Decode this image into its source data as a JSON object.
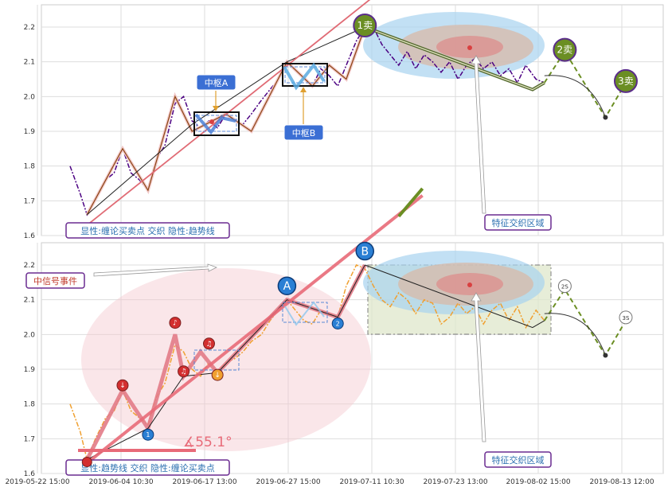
{
  "chart_data": [
    {
      "panel": "top",
      "type": "line",
      "x_ticks": [
        "2019-05-22 15:00",
        "2019-06-04 10:30",
        "2019-06-17 13:00",
        "2019-06-27 15:00",
        "2019-07-11 10:30",
        "2019-07-23 13:00",
        "2019-08-02 15:00",
        "2019-08-13 12:00"
      ],
      "ylim": [
        1.6,
        2.25
      ],
      "y_ticks": [
        "1.6",
        "1.7",
        "1.8",
        "1.9",
        "2.0",
        "2.1",
        "2.2"
      ],
      "grid": true,
      "series": [
        {
          "style": "price-dashdot",
          "color": "#4b0082",
          "points": [
            [
              0.0,
              1.8
            ],
            [
              0.6,
              1.72
            ],
            [
              1.0,
              1.66
            ],
            [
              1.5,
              1.7
            ],
            [
              2.1,
              1.76
            ],
            [
              2.6,
              1.78
            ],
            [
              3.1,
              1.85
            ],
            [
              3.6,
              1.78
            ],
            [
              4.1,
              1.76
            ],
            [
              4.6,
              1.73
            ],
            [
              5.1,
              1.82
            ],
            [
              5.6,
              1.86
            ],
            [
              6.2,
              1.98
            ],
            [
              6.7,
              2.0
            ],
            [
              7.2,
              1.93
            ],
            [
              7.7,
              1.91
            ],
            [
              8.2,
              1.93
            ],
            [
              8.7,
              1.91
            ],
            [
              9.2,
              1.95
            ],
            [
              9.7,
              1.93
            ],
            [
              10.2,
              1.92
            ],
            [
              10.7,
              1.95
            ],
            [
              11.3,
              1.99
            ],
            [
              11.8,
              2.02
            ],
            [
              12.3,
              2.05
            ],
            [
              12.8,
              2.1
            ],
            [
              13.3,
              2.08
            ],
            [
              13.8,
              2.05
            ],
            [
              14.3,
              2.03
            ],
            [
              14.8,
              2.08
            ],
            [
              15.3,
              2.06
            ],
            [
              15.8,
              2.03
            ],
            [
              16.3,
              2.09
            ],
            [
              16.9,
              2.16
            ],
            [
              17.4,
              2.2
            ],
            [
              17.9,
              2.2
            ],
            [
              18.4,
              2.15
            ],
            [
              18.9,
              2.12
            ],
            [
              19.4,
              2.09
            ],
            [
              19.9,
              2.13
            ],
            [
              20.4,
              2.08
            ],
            [
              20.9,
              2.12
            ],
            [
              21.4,
              2.1
            ],
            [
              21.9,
              2.07
            ],
            [
              22.4,
              2.1
            ],
            [
              22.9,
              2.05
            ],
            [
              23.4,
              2.09
            ],
            [
              23.9,
              2.11
            ],
            [
              24.4,
              2.08
            ],
            [
              24.9,
              2.1
            ],
            [
              25.4,
              2.06
            ],
            [
              25.9,
              2.08
            ],
            [
              26.4,
              2.04
            ],
            [
              26.9,
              2.09
            ],
            [
              27.5,
              2.05
            ],
            [
              28.0,
              2.04
            ]
          ]
        },
        {
          "style": "stroke-brown",
          "color": "#8b4513",
          "points": [
            [
              1.0,
              1.66
            ],
            [
              3.1,
              1.85
            ],
            [
              4.6,
              1.73
            ],
            [
              6.2,
              2.0
            ],
            [
              7.2,
              1.9
            ],
            [
              9.2,
              1.95
            ],
            [
              10.7,
              1.9
            ],
            [
              12.8,
              2.1
            ],
            [
              14.3,
              2.03
            ],
            [
              15.3,
              2.09
            ],
            [
              16.3,
              2.05
            ],
            [
              17.4,
              2.2
            ]
          ]
        },
        {
          "style": "segment-black",
          "color": "#222222",
          "points": [
            [
              1.0,
              1.66
            ],
            [
              7.2,
              1.92
            ],
            [
              12.8,
              2.1
            ],
            [
              17.4,
              2.2
            ]
          ]
        },
        {
          "style": "feature-green",
          "color": "#556b2f",
          "points": [
            [
              17.4,
              2.2
            ],
            [
              27.3,
              2.02
            ],
            [
              28.0,
              2.04
            ]
          ]
        },
        {
          "style": "forecast-dashed",
          "color": "#6b8e23",
          "points": [
            [
              28.0,
              2.04
            ],
            [
              29.2,
              2.13
            ],
            [
              31.6,
              1.94
            ],
            [
              32.8,
              2.04
            ]
          ]
        },
        {
          "style": "trend-red",
          "color": "#e06b75",
          "points": [
            [
              1.0,
              1.63
            ],
            [
              20.8,
              2.4
            ]
          ]
        }
      ],
      "pivots": [
        {
          "name": "中枢A",
          "x0": 7.7,
          "x1": 9.4,
          "y0": 1.88,
          "y1": 1.95
        },
        {
          "name": "中枢B",
          "x0": 13.5,
          "x1": 15.6,
          "y0": 2.03,
          "y1": 2.09
        }
      ],
      "signals": [
        {
          "label": "1卖",
          "x": 17.4,
          "y": 2.2
        },
        {
          "label": "2卖",
          "x": 29.2,
          "y": 2.13
        },
        {
          "label": "3卖",
          "x": 32.8,
          "y": 2.04
        }
      ],
      "annotations": {
        "pivot_a": "中枢A",
        "pivot_b": "中枢B",
        "feature_zone": "特征交织区域",
        "legend": "显性:缠论买卖点 交织 隐性:趋势线"
      }
    },
    {
      "panel": "bottom",
      "type": "line",
      "x_ticks": [
        "2019-05-22 15:00",
        "2019-06-04 10:30",
        "2019-06-17 13:00",
        "2019-06-27 15:00",
        "2019-07-11 10:30",
        "2019-07-23 13:00",
        "2019-08-02 15:00",
        "2019-08-13 12:00"
      ],
      "ylim": [
        1.6,
        2.25
      ],
      "y_ticks": [
        "1.6",
        "1.7",
        "1.8",
        "1.9",
        "2.0",
        "2.1",
        "2.2"
      ],
      "grid": true,
      "series": [
        {
          "style": "price-dashdot",
          "color": "#f0a030",
          "points": [
            [
              0.0,
              1.8
            ],
            [
              0.6,
              1.72
            ],
            [
              1.0,
              1.64
            ],
            [
              1.5,
              1.7
            ],
            [
              2.1,
              1.76
            ],
            [
              2.6,
              1.78
            ],
            [
              3.1,
              1.84
            ],
            [
              3.6,
              1.78
            ],
            [
              4.1,
              1.76
            ],
            [
              4.6,
              1.74
            ],
            [
              5.1,
              1.82
            ],
            [
              5.6,
              1.86
            ],
            [
              6.2,
              1.97
            ],
            [
              6.7,
              1.95
            ],
            [
              7.2,
              1.9
            ],
            [
              7.7,
              1.88
            ],
            [
              8.2,
              1.92
            ],
            [
              8.7,
              1.89
            ],
            [
              9.2,
              1.92
            ],
            [
              9.7,
              1.93
            ],
            [
              10.2,
              1.95
            ],
            [
              10.7,
              1.98
            ],
            [
              11.3,
              2.0
            ],
            [
              11.8,
              2.04
            ],
            [
              12.3,
              2.07
            ],
            [
              12.8,
              2.1
            ],
            [
              13.3,
              2.07
            ],
            [
              13.8,
              2.04
            ],
            [
              14.3,
              2.03
            ],
            [
              14.8,
              2.07
            ],
            [
              15.3,
              2.06
            ],
            [
              15.8,
              2.05
            ],
            [
              16.3,
              2.14
            ],
            [
              16.9,
              2.2
            ],
            [
              17.4,
              2.19
            ],
            [
              17.9,
              2.14
            ],
            [
              18.4,
              2.1
            ],
            [
              18.9,
              2.08
            ],
            [
              19.4,
              2.12
            ],
            [
              19.9,
              2.1
            ],
            [
              20.4,
              2.06
            ],
            [
              20.9,
              2.1
            ],
            [
              21.4,
              2.09
            ],
            [
              21.9,
              2.03
            ],
            [
              22.4,
              2.05
            ],
            [
              22.9,
              2.09
            ],
            [
              23.4,
              2.06
            ],
            [
              23.9,
              2.08
            ],
            [
              24.4,
              2.03
            ],
            [
              24.9,
              2.07
            ],
            [
              25.4,
              2.09
            ],
            [
              25.9,
              2.04
            ],
            [
              26.4,
              2.08
            ],
            [
              26.9,
              2.02
            ],
            [
              27.5,
              2.07
            ],
            [
              28.0,
              2.04
            ]
          ]
        },
        {
          "style": "stroke-pink",
          "color": "#e27b87",
          "points": [
            [
              1.0,
              1.64
            ],
            [
              3.1,
              1.84
            ],
            [
              4.6,
              1.73
            ],
            [
              6.2,
              2.0
            ],
            [
              6.7,
              1.88
            ],
            [
              7.7,
              1.95
            ],
            [
              8.7,
              1.89
            ],
            [
              12.8,
              2.1
            ],
            [
              15.8,
              2.05
            ],
            [
              17.4,
              2.2
            ]
          ]
        },
        {
          "style": "segment-black",
          "color": "#222222",
          "points": [
            [
              1.0,
              1.64
            ],
            [
              4.6,
              1.73
            ],
            [
              6.7,
              1.88
            ],
            [
              8.7,
              1.89
            ],
            [
              12.8,
              2.1
            ],
            [
              15.8,
              2.05
            ],
            [
              17.4,
              2.2
            ]
          ]
        },
        {
          "style": "feature-black",
          "color": "#222222",
          "points": [
            [
              17.4,
              2.2
            ],
            [
              27.3,
              2.02
            ],
            [
              28.0,
              2.04
            ]
          ]
        },
        {
          "style": "forecast-dashed",
          "color": "#6b8e23",
          "points": [
            [
              28.0,
              2.04
            ],
            [
              29.2,
              2.13
            ],
            [
              31.6,
              1.94
            ],
            [
              32.8,
              2.04
            ]
          ]
        },
        {
          "style": "trend-pink",
          "color": "#e86a78",
          "points": [
            [
              1.0,
              1.63
            ],
            [
              20.8,
              2.4
            ]
          ]
        }
      ],
      "pivots": [
        {
          "x0": 7.7,
          "x1": 9.4,
          "y0": 1.88,
          "y1": 1.94
        },
        {
          "x0": 13.5,
          "x1": 15.6,
          "y0": 2.03,
          "y1": 2.09
        }
      ],
      "markers": [
        {
          "label": "1",
          "kind": "buy",
          "x": 4.6,
          "y": 1.73
        },
        {
          "label": "2",
          "kind": "buy",
          "x": 15.8,
          "y": 2.05
        },
        {
          "label": "A",
          "kind": "big",
          "x": 12.8,
          "y": 2.14
        },
        {
          "label": "B",
          "kind": "big",
          "x": 17.4,
          "y": 2.24
        },
        {
          "label": "2S",
          "kind": "sell",
          "x": 29.2,
          "y": 2.13
        },
        {
          "label": "3S",
          "kind": "sell",
          "x": 32.8,
          "y": 2.04
        }
      ],
      "signals": [
        {
          "glyph": "↓",
          "x": 3.1,
          "y": 1.84,
          "color": "#d32f2f"
        },
        {
          "glyph": "♪",
          "x": 6.2,
          "y": 2.02,
          "color": "#d32f2f"
        },
        {
          "glyph": "♫",
          "x": 6.7,
          "y": 1.88,
          "color": "#d32f2f"
        },
        {
          "glyph": "♫",
          "x": 8.2,
          "y": 1.96,
          "color": "#d32f2f"
        },
        {
          "glyph": "↓",
          "x": 8.7,
          "y": 1.87,
          "color": "#f0a030"
        }
      ],
      "annotations": {
        "event": "中信号事件",
        "angle": "∡55.1°",
        "feature_zone": "特征交织区域",
        "legend": "显性:趋势线 交织 隐性:缠论买卖点"
      }
    }
  ]
}
